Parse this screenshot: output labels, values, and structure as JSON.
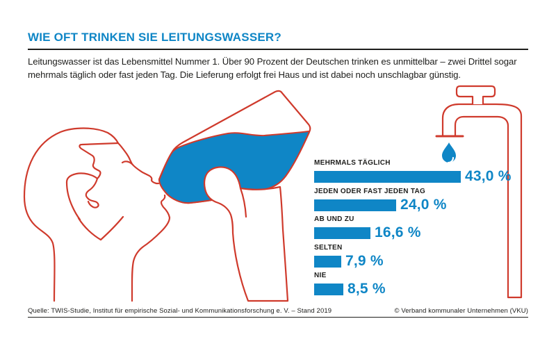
{
  "title": "WIE OFT TRINKEN SIE LEITUNGSWASSER?",
  "intro_text": "Leitungswasser ist das Lebensmittel Nummer 1. Über 90 Prozent der Deutschen trinken es unmittelbar – zwei Drittel sogar mehrmals täglich oder fast jeden Tag. Die Lieferung erfolgt frei Haus und ist dabei noch unschlagbar günstig.",
  "chart_data": {
    "type": "bar",
    "orientation": "horizontal",
    "title": "WIE OFT TRINKEN SIE LEITUNGSWASSER?",
    "categories": [
      "MEHRMALS TÄGLICH",
      "JEDEN ODER FAST JEDEN TAG",
      "AB UND ZU",
      "SELTEN",
      "NIE"
    ],
    "values": [
      43.0,
      24.0,
      16.6,
      7.9,
      8.5
    ],
    "value_labels": [
      "43,0 %",
      "24,0 %",
      "16,6 %",
      "7,9 %",
      "8,5 %"
    ],
    "unit": "%",
    "xlim": [
      0,
      50
    ],
    "grid": false,
    "legend": false,
    "bar_color": "#0F86C6",
    "label_color": "#1D1D1B"
  },
  "illustrations": {
    "person": "man drinking water from tilted bottle (red outline, blue water)",
    "faucet": "tap with T-handle and down pipe (red outline)",
    "drop": "blue water drop under spout"
  },
  "footer": {
    "source": "Quelle: TWIS-Studie, Institut für empirische Sozial- und Kommunikationsforschung e. V. – Stand 2019",
    "copyright": "© Verband kommunaler Unternehmen (VKU)"
  },
  "colors": {
    "accent_blue": "#0F86C6",
    "illustration_red": "#CF3A2C",
    "text_dark": "#1D1D1B",
    "background": "#FFFFFF"
  }
}
